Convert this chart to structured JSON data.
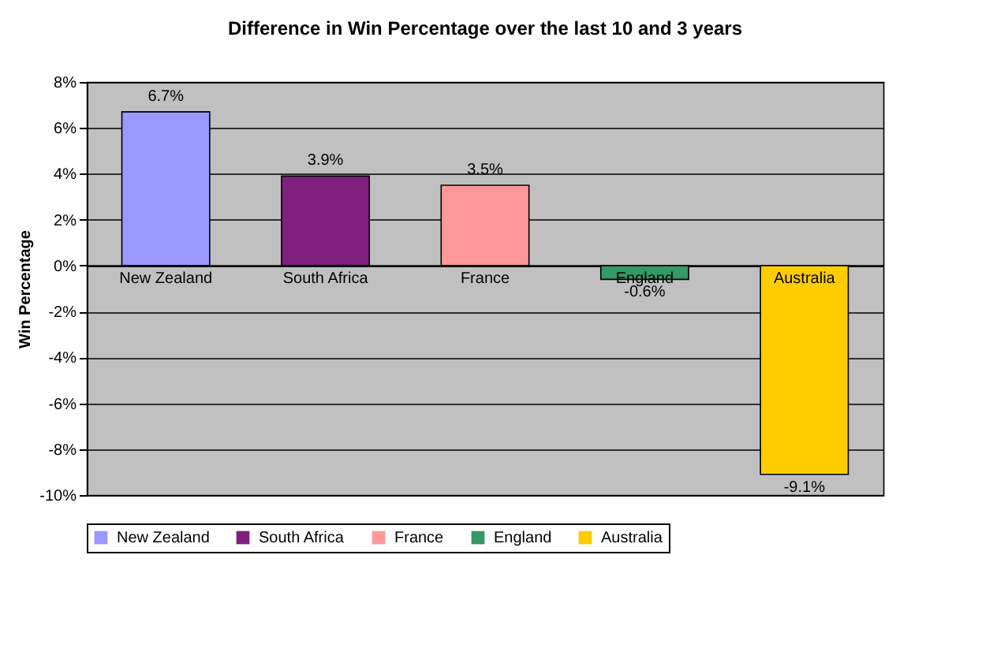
{
  "chart_data": {
    "type": "bar",
    "title": "Difference in Win Percentage over the last 10 and 3 years",
    "ylabel": "Win Percentage",
    "categories": [
      "New Zealand",
      "South Africa",
      "France",
      "England",
      "Australia"
    ],
    "stacked": true,
    "series": [
      {
        "name": "New Zealand",
        "color": "#9999ff",
        "values": [
          6.7,
          null,
          null,
          null,
          null
        ],
        "value_labels": [
          "6.7%",
          null,
          null,
          null,
          null
        ]
      },
      {
        "name": "South Africa",
        "color": "#7f1f7f",
        "values": [
          null,
          3.9,
          null,
          null,
          null
        ],
        "value_labels": [
          null,
          "3.9%",
          null,
          null,
          null
        ]
      },
      {
        "name": "France",
        "color": "#ff9999",
        "values": [
          null,
          null,
          3.5,
          null,
          null
        ],
        "value_labels": [
          null,
          null,
          "3.5%",
          null,
          null
        ]
      },
      {
        "name": "England",
        "color": "#339966",
        "values": [
          null,
          null,
          null,
          -0.6,
          null
        ],
        "value_labels": [
          null,
          null,
          null,
          "-0.6%",
          null
        ]
      },
      {
        "name": "Australia",
        "color": "#ffcc00",
        "values": [
          null,
          null,
          null,
          null,
          -9.1
        ],
        "value_labels": [
          null,
          null,
          null,
          null,
          "-9.1%"
        ]
      }
    ],
    "ylim": [
      -10,
      8
    ],
    "yticks": [
      {
        "value": -10,
        "label": "-10%"
      },
      {
        "value": -8,
        "label": "-8%"
      },
      {
        "value": -6,
        "label": "-6%"
      },
      {
        "value": -4,
        "label": "-4%"
      },
      {
        "value": -2,
        "label": "-2%"
      },
      {
        "value": 0,
        "label": "0%"
      },
      {
        "value": 2,
        "label": "2%"
      },
      {
        "value": 4,
        "label": "4%"
      },
      {
        "value": 6,
        "label": "6%"
      },
      {
        "value": 8,
        "label": "8%"
      }
    ],
    "grid": "y",
    "legend": "bottom"
  }
}
